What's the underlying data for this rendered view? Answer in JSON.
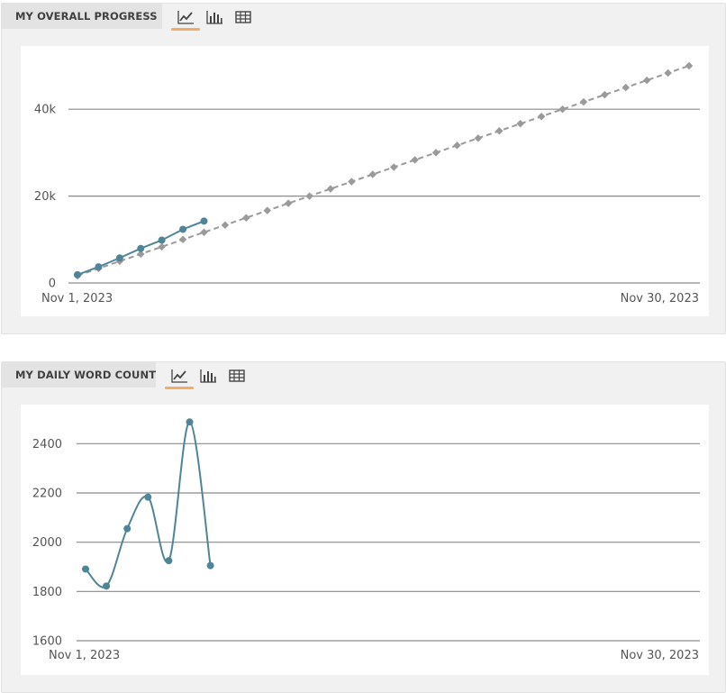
{
  "panels": [
    {
      "title": "MY OVERALL PROGRESS",
      "views": [
        {
          "icon": "line-chart-icon",
          "active": true
        },
        {
          "icon": "bar-chart-icon",
          "active": false
        },
        {
          "icon": "table-icon",
          "active": false
        }
      ]
    },
    {
      "title": "MY DAILY WORD COUNT",
      "views": [
        {
          "icon": "line-chart-icon",
          "active": true
        },
        {
          "icon": "bar-chart-icon",
          "active": false
        },
        {
          "icon": "table-icon",
          "active": false
        }
      ]
    }
  ],
  "colors": {
    "actual": "#4f8596",
    "target": "#9a9a9a",
    "grid": "#8a8a8a",
    "tab_underline": "#f0ad6a"
  },
  "chart_data": [
    {
      "type": "line",
      "title": "MY OVERALL PROGRESS",
      "x_start_label": "Nov 1, 2023",
      "x_end_label": "Nov 30, 2023",
      "ylim": [
        0,
        50000
      ],
      "yticks": [
        0,
        20000,
        40000
      ],
      "ytick_labels": [
        "0",
        "20k",
        "40k"
      ],
      "grid": true,
      "series": [
        {
          "style": "solid",
          "x": [
            "2023-11-01",
            "2023-11-02",
            "2023-11-03",
            "2023-11-04",
            "2023-11-05",
            "2023-11-06",
            "2023-11-07"
          ],
          "values": [
            1890,
            3710,
            5760,
            7940,
            9860,
            12350,
            14250
          ]
        },
        {
          "style": "dashed",
          "x": [
            "2023-11-01",
            "2023-11-02",
            "2023-11-03",
            "2023-11-04",
            "2023-11-05",
            "2023-11-06",
            "2023-11-07",
            "2023-11-08",
            "2023-11-09",
            "2023-11-10",
            "2023-11-11",
            "2023-11-12",
            "2023-11-13",
            "2023-11-14",
            "2023-11-15",
            "2023-11-16",
            "2023-11-17",
            "2023-11-18",
            "2023-11-19",
            "2023-11-20",
            "2023-11-21",
            "2023-11-22",
            "2023-11-23",
            "2023-11-24",
            "2023-11-25",
            "2023-11-26",
            "2023-11-27",
            "2023-11-28",
            "2023-11-29",
            "2023-11-30"
          ],
          "values": [
            1667,
            3333,
            5000,
            6667,
            8333,
            10000,
            11667,
            13333,
            15000,
            16667,
            18333,
            20000,
            21667,
            23333,
            25000,
            26667,
            28333,
            30000,
            31667,
            33333,
            35000,
            36667,
            38333,
            40000,
            41667,
            43333,
            45000,
            46667,
            48333,
            50000
          ]
        }
      ]
    },
    {
      "type": "line",
      "title": "MY DAILY WORD COUNT",
      "x_start_label": "Nov 1, 2023",
      "x_end_label": "Nov 30, 2023",
      "ylim": [
        1600,
        2500
      ],
      "yticks": [
        1600,
        1800,
        2000,
        2200,
        2400
      ],
      "ytick_labels": [
        "1600",
        "1800",
        "2000",
        "2200",
        "2400"
      ],
      "grid": true,
      "series": [
        {
          "style": "smooth",
          "x": [
            "2023-11-01",
            "2023-11-02",
            "2023-11-03",
            "2023-11-04",
            "2023-11-05",
            "2023-11-06",
            "2023-11-07"
          ],
          "values": [
            1891,
            1822,
            2055,
            2183,
            1925,
            2488,
            1905
          ]
        }
      ]
    }
  ]
}
